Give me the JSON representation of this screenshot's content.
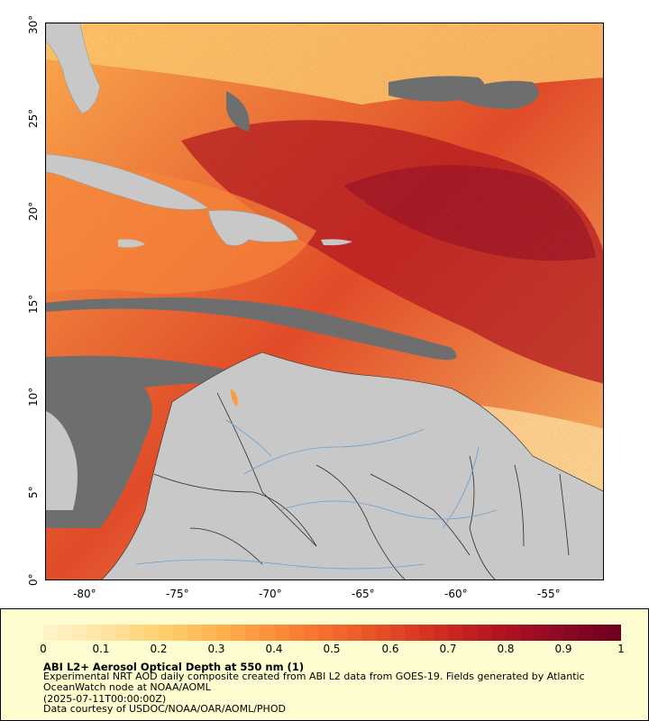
{
  "map": {
    "lon_labels": [
      "-80°",
      "-75°",
      "-70°",
      "-65°",
      "-60°",
      "-55°"
    ],
    "lat_labels": [
      "0°",
      "5°",
      "10°",
      "15°",
      "20°",
      "25°",
      "30°"
    ],
    "lon_range": [
      -82,
      -52
    ],
    "lat_range": [
      0,
      30
    ],
    "colors": {
      "land": "#c8c8c8",
      "no_data": "#6e6e6e",
      "border": "#2a2a2a",
      "river": "#6a9fd4"
    }
  },
  "legend": {
    "ticks": [
      "0",
      "0.1",
      "0.2",
      "0.3",
      "0.4",
      "0.5",
      "0.6",
      "0.7",
      "0.8",
      "0.9",
      "1"
    ],
    "range": [
      0,
      1
    ],
    "colors": [
      "#fff3c6",
      "#ffe3a0",
      "#ffcf6e",
      "#ffb24e",
      "#fb8c3a",
      "#f26a2d",
      "#e34a26",
      "#cd2a22",
      "#b0141f",
      "#8e0a24",
      "#70001f"
    ],
    "title": "ABI L2+ Aerosol Optical Depth at 550 nm (1)",
    "description": "Experimental NRT AOD daily composite created from ABI L2 data from GOES-19. Fields generated by Atlantic OceanWatch node at NOAA/AOML",
    "timestamp": "(2025-07-11T00:00:00Z)",
    "credit": "Data courtesy of USDOC/NOAA/OAR/AOML/PHOD"
  }
}
